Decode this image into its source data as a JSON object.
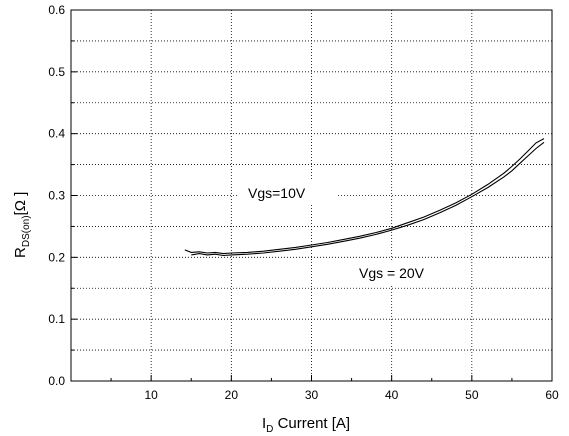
{
  "chart_data": {
    "type": "line",
    "xlabel_main": "I",
    "xlabel_sub": "D",
    "xlabel_rest": " Current [A]",
    "ylabel_main": "R",
    "ylabel_sub": "DS(on)",
    "ylabel_rest": "[Ω ]",
    "xlim": [
      0,
      60
    ],
    "ylim": [
      0,
      0.6
    ],
    "x_ticks": [
      10,
      20,
      30,
      40,
      50,
      60
    ],
    "x_tick_labels": [
      "10",
      "20",
      "30",
      "40",
      "50",
      "60"
    ],
    "y_ticks": [
      0,
      0.1,
      0.2,
      0.3,
      0.4,
      0.5,
      0.6
    ],
    "y_tick_labels": [
      "0.0",
      "0.1",
      "0.2",
      "0.3",
      "0.4",
      "0.5",
      "0.6"
    ],
    "grid": true,
    "annotations": [
      "Vgs=10V",
      "Vgs = 20V"
    ],
    "series": [
      {
        "x": [
          14.2,
          15,
          16,
          17,
          18,
          19,
          20,
          22,
          24,
          26,
          28,
          30,
          32,
          34,
          36,
          38,
          40,
          42,
          44,
          46,
          48,
          50,
          52,
          54,
          55,
          56,
          57,
          58,
          59
        ],
        "values": [
          0.212,
          0.208,
          0.209,
          0.207,
          0.208,
          0.206,
          0.207,
          0.208,
          0.21,
          0.213,
          0.216,
          0.22,
          0.224,
          0.229,
          0.234,
          0.24,
          0.247,
          0.256,
          0.265,
          0.276,
          0.288,
          0.302,
          0.318,
          0.336,
          0.347,
          0.359,
          0.372,
          0.385,
          0.392
        ]
      },
      {
        "x": [
          15,
          16,
          17,
          18,
          19,
          20,
          22,
          24,
          26,
          28,
          30,
          32,
          34,
          36,
          38,
          40,
          42,
          44,
          46,
          48,
          50,
          52,
          54,
          55,
          56,
          57,
          58,
          59
        ],
        "values": [
          0.204,
          0.206,
          0.204,
          0.205,
          0.203,
          0.204,
          0.205,
          0.207,
          0.21,
          0.213,
          0.217,
          0.221,
          0.226,
          0.231,
          0.237,
          0.244,
          0.252,
          0.261,
          0.272,
          0.284,
          0.298,
          0.313,
          0.33,
          0.34,
          0.352,
          0.364,
          0.376,
          0.386
        ]
      }
    ]
  }
}
